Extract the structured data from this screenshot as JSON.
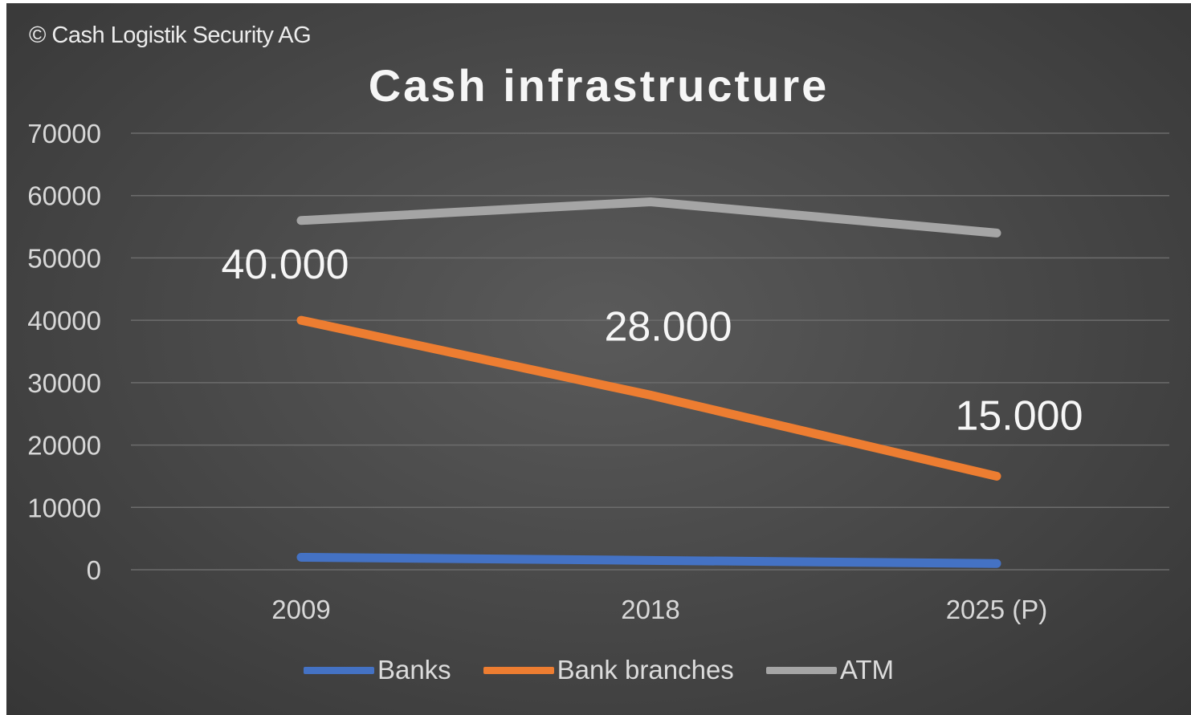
{
  "copyright": "© Cash Logistik Security AG",
  "chart_data": {
    "type": "line",
    "title": "Cash infrastructure",
    "xlabel": "",
    "ylabel": "",
    "categories": [
      "2009",
      "2018",
      "2025 (P)"
    ],
    "ylim": [
      0,
      70000
    ],
    "yticks": [
      "0",
      "10000",
      "20000",
      "30000",
      "40000",
      "50000",
      "60000",
      "70000"
    ],
    "grid": true,
    "legend_position": "bottom",
    "series": [
      {
        "name": "Banks",
        "color": "#4472c4",
        "values": [
          2000,
          1500,
          1000
        ]
      },
      {
        "name": "Bank branches",
        "color": "#ed7d31",
        "values": [
          40000,
          28000,
          15000
        ],
        "data_labels": [
          "40.000",
          "28.000",
          "15.000"
        ]
      },
      {
        "name": "ATM",
        "color": "#a5a5a5",
        "values": [
          56000,
          59000,
          54000
        ]
      }
    ]
  }
}
